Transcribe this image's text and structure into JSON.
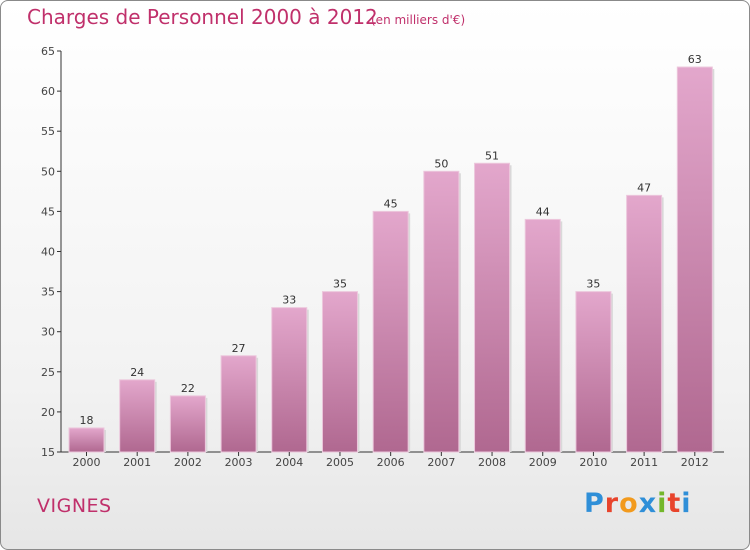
{
  "header": {
    "title": "Charges de Personnel 2000 à 2012",
    "subtitle": "(en milliers d'€)"
  },
  "footer": {
    "commune": "VIGNES",
    "logo_text": "Proxiti",
    "logo_colors": [
      "#2f8fd8",
      "#e8442c",
      "#f29a1d",
      "#2f8fd8",
      "#73b72b",
      "#e8442c",
      "#2f8fd8"
    ]
  },
  "colors": {
    "bar_top": "#e3a7cc",
    "bar_bottom": "#b06890",
    "accent": "#c0306b"
  },
  "chart_data": {
    "type": "bar",
    "categories": [
      "2000",
      "2001",
      "2002",
      "2003",
      "2004",
      "2005",
      "2006",
      "2007",
      "2008",
      "2009",
      "2010",
      "2011",
      "2012"
    ],
    "values": [
      18,
      24,
      22,
      27,
      33,
      35,
      45,
      50,
      51,
      44,
      35,
      47,
      63
    ],
    "title": "Charges de Personnel 2000 à 2012",
    "xlabel": "",
    "ylabel": "",
    "ylim": [
      15,
      65
    ],
    "yticks": [
      15,
      20,
      25,
      30,
      35,
      40,
      45,
      50,
      55,
      60,
      65
    ],
    "grid": false,
    "legend": "none"
  }
}
